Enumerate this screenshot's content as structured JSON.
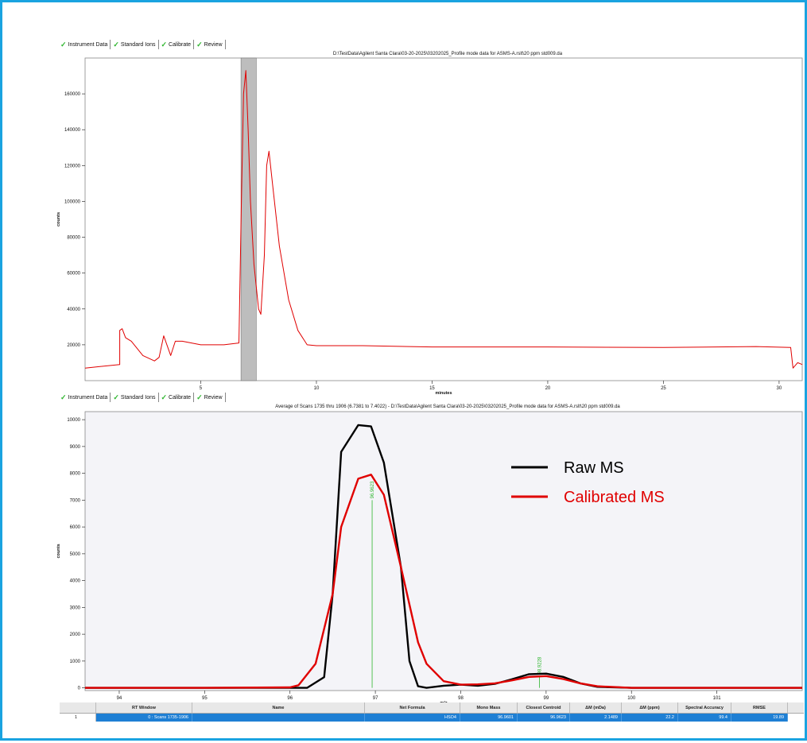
{
  "tabs": [
    "Instrument Data",
    "Standard Ions",
    "Calibrate",
    "Review"
  ],
  "top_plot": {
    "title": "D:\\TestData\\Agilent Santa Clara\\03-20-2025\\03202025_Profile mode data for ASMS-A.rslt\\20 ppm std009.da",
    "xlabel": "minutes",
    "ylabel": "counts"
  },
  "bottom_plot": {
    "title": "Average of Scans 1735 thru 1906 (6.7381 to 7.4022) - D:\\TestData\\Agilent Santa Clara\\03-20-2025\\03202025_Profile mode data for ASMS-A.rslt\\20 ppm std009.da",
    "xlabel": "m/z",
    "ylabel": "counts",
    "peak_labels": [
      "96.9623",
      "98.9228"
    ]
  },
  "legend": {
    "raw": "Raw MS",
    "calibrated": "Calibrated MS"
  },
  "colors": {
    "raw": "#000000",
    "calibrated": "#e00000",
    "tic": "#e00000",
    "border": "#1aa3e0",
    "selection": "#1e7fd4",
    "centroid": "#2db52d"
  },
  "chart_data": [
    {
      "type": "line",
      "xlabel": "minutes",
      "ylabel": "counts",
      "xlim": [
        0,
        31
      ],
      "ylim": [
        0,
        180000
      ],
      "xticks": [
        5,
        10,
        15,
        20,
        25,
        30
      ],
      "yticks": [
        20000,
        40000,
        60000,
        80000,
        100000,
        120000,
        140000,
        160000
      ],
      "highlight_range": [
        6.74,
        7.4
      ],
      "series": [
        {
          "color": "#e00000",
          "x": [
            0,
            1.5,
            1.5,
            1.6,
            1.75,
            2.0,
            2.5,
            3.0,
            3.2,
            3.4,
            3.7,
            3.9,
            4.2,
            5.0,
            6.0,
            6.65,
            6.75,
            6.85,
            6.95,
            7.05,
            7.15,
            7.3,
            7.5,
            7.6,
            7.75,
            7.85,
            7.95,
            8.1,
            8.4,
            8.8,
            9.2,
            9.6,
            10,
            12,
            15,
            20,
            25,
            29,
            30.5,
            30.6,
            30.8,
            31
          ],
          "y": [
            7000,
            9000,
            28000,
            29000,
            24000,
            22000,
            14000,
            11000,
            13000,
            25000,
            14000,
            22000,
            22000,
            20000,
            20000,
            21000,
            95000,
            160000,
            173000,
            140000,
            100000,
            65000,
            40000,
            37000,
            70000,
            120000,
            128000,
            110000,
            75000,
            45000,
            28000,
            20000,
            19500,
            19500,
            18800,
            18800,
            18500,
            19000,
            18500,
            7000,
            10000,
            9000
          ]
        }
      ]
    },
    {
      "type": "line",
      "xlabel": "m/z",
      "ylabel": "counts",
      "xlim": [
        93.6,
        102.0
      ],
      "ylim": [
        -100,
        10300
      ],
      "xticks": [
        94,
        95,
        96,
        97,
        98,
        99,
        100,
        101
      ],
      "yticks": [
        0,
        1000,
        2000,
        3000,
        4000,
        5000,
        6000,
        7000,
        8000,
        9000,
        10000
      ],
      "centroids": [
        {
          "x": 96.9623,
          "y": 7000
        },
        {
          "x": 98.9228,
          "y": 450
        }
      ],
      "series": [
        {
          "name": "Raw MS",
          "color": "#000000",
          "x": [
            93.6,
            95,
            96,
            96.2,
            96.4,
            96.5,
            96.6,
            96.8,
            96.95,
            97.1,
            97.3,
            97.4,
            97.5,
            97.6,
            97.8,
            98.0,
            98.2,
            98.4,
            98.6,
            98.8,
            99.0,
            99.2,
            99.4,
            99.6,
            100,
            101,
            102
          ],
          "y": [
            0,
            0,
            0,
            0,
            400,
            3500,
            8800,
            9800,
            9750,
            8400,
            4500,
            1000,
            60,
            0,
            80,
            120,
            80,
            150,
            320,
            510,
            530,
            410,
            170,
            40,
            0,
            0,
            0
          ]
        },
        {
          "name": "Calibrated MS",
          "color": "#e00000",
          "x": [
            93.6,
            95,
            96,
            96.1,
            96.3,
            96.5,
            96.6,
            96.8,
            96.95,
            97.1,
            97.3,
            97.5,
            97.6,
            97.8,
            98.0,
            98.2,
            98.4,
            98.6,
            98.8,
            99.0,
            99.2,
            99.4,
            99.6,
            100,
            101,
            102
          ],
          "y": [
            0,
            0,
            20,
            100,
            900,
            3500,
            6000,
            7800,
            7950,
            7200,
            4500,
            1700,
            900,
            250,
            120,
            130,
            170,
            280,
            410,
            440,
            330,
            170,
            60,
            0,
            0,
            0
          ]
        }
      ]
    }
  ],
  "table": {
    "headers": [
      "",
      "RT Window",
      "Name",
      "Net Formula",
      "Mono Mass",
      "Closest Centroid",
      "ΔM (mDa)",
      "ΔM (ppm)",
      "Spectral Accuracy",
      "RMSE"
    ],
    "rows": [
      [
        "1",
        "0 : Scans 1735-1906",
        "",
        "HSO4",
        "96.9601",
        "96.9623",
        "2.1489",
        "22.2",
        "99.4",
        "19.89"
      ]
    ]
  }
}
